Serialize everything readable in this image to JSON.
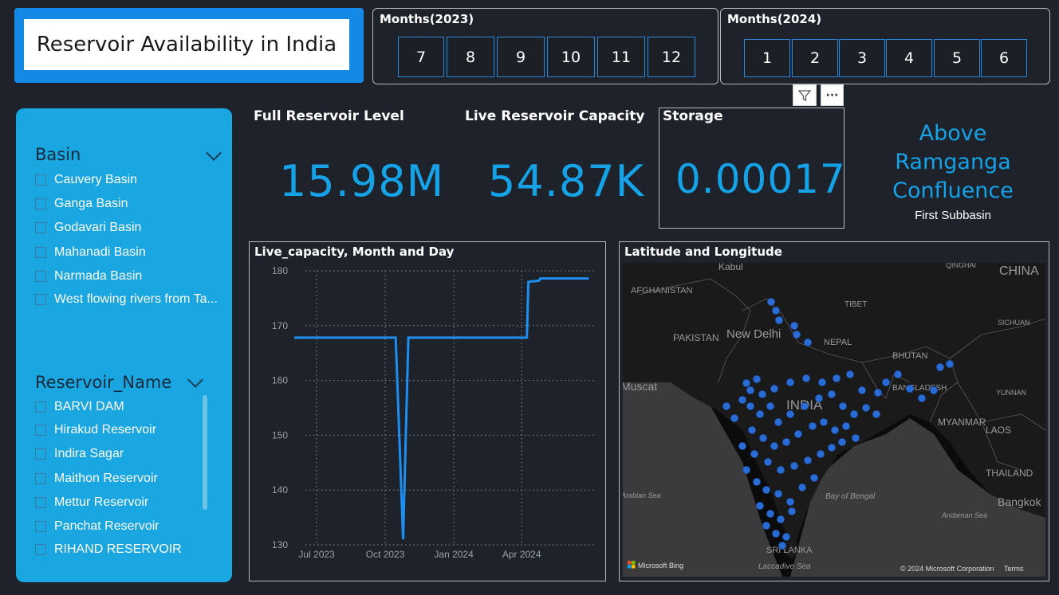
{
  "title": "Reservoir Availability in India",
  "months_2023": {
    "label": "Months(2023)",
    "items": [
      "7",
      "8",
      "9",
      "10",
      "11",
      "12"
    ]
  },
  "months_2024": {
    "label": "Months(2024)",
    "items": [
      "1",
      "2",
      "3",
      "4",
      "5",
      "6"
    ]
  },
  "toolbar": {
    "filter_icon": "filter-icon",
    "more_icon": "more-options-icon",
    "more_glyph": "···"
  },
  "basin_slicer": {
    "label": "Basin",
    "options": [
      "Cauvery Basin",
      "Ganga Basin",
      "Godavari Basin",
      "Mahanadi Basin",
      "Narmada Basin",
      "West flowing rivers from Ta..."
    ]
  },
  "reservoir_slicer": {
    "label": "Reservoir_Name",
    "options": [
      "BARVI DAM",
      "Hirakud Reservoir",
      "Indira Sagar",
      "Maithon Reservoir",
      "Mettur Reservoir",
      "Panchat Reservoir",
      "RIHAND RESERVOIR"
    ]
  },
  "kpis": {
    "full_reservoir_level": {
      "label": "Full Reservoir Level",
      "value": "15.98M"
    },
    "live_reservoir_capacity": {
      "label": "Live Reservoir Capacity",
      "value": "54.87K"
    },
    "storage": {
      "label": "Storage",
      "value": "0.00017"
    }
  },
  "subbasin": {
    "value": "Above Ramganga Confluence",
    "label": "First Subbasin"
  },
  "chart_data": {
    "type": "line",
    "title": "Live_capacity, Month and Day",
    "x_tick_labels": [
      "Jul 2023",
      "Oct 2023",
      "Jan 2024",
      "Apr 2024"
    ],
    "y_ticks": [
      130,
      140,
      150,
      160,
      170,
      180
    ],
    "ylim": [
      130,
      180
    ],
    "grid": true,
    "series": [
      {
        "x": [
          "2023-06-01",
          "2023-10-15",
          "2023-10-25",
          "2023-11-01",
          "2024-04-08",
          "2024-04-10",
          "2024-04-24",
          "2024-04-26",
          "2024-06-30"
        ],
        "values": [
          167.8,
          167.8,
          131.0,
          167.8,
          167.8,
          178.0,
          178.2,
          178.6,
          178.6
        ]
      }
    ],
    "color": "#1e8ff0"
  },
  "map": {
    "title": "Latitude and Longitude",
    "place_labels": [
      "Kabul",
      "AFGHANISTAN",
      "PAKISTAN",
      "New Delhi",
      "TIBET",
      "NEPAL",
      "BHUTAN",
      "INDIA",
      "BANGLADESH",
      "MYANMAR",
      "LAOS",
      "THAILAND",
      "Bangkok",
      "CHINA",
      "QINGHAI",
      "SICHUAN",
      "YUNNAN",
      "Muscat",
      "Arabian Sea",
      "Bay of Bengal",
      "Andaman Sea",
      "SRI LANKA",
      "Laccadive Sea"
    ],
    "logo": "Microsoft Bing",
    "copyright": "© 2024 Microsoft Corporation",
    "terms": "Terms"
  }
}
